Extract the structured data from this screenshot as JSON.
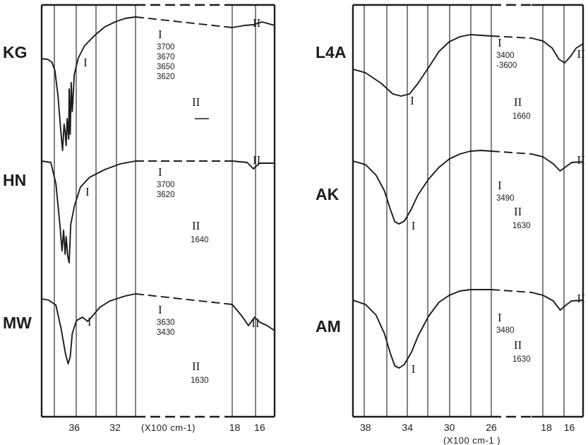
{
  "chart_data": [
    {
      "type": "line",
      "panel": "left",
      "xlabel": "(X100 cm-1)",
      "x_ticks": [
        36,
        32,
        18,
        16
      ],
      "x_range_segments": [
        [
          39.2,
          30
        ],
        [
          18.2,
          14.8
        ]
      ],
      "grid": true,
      "series": [
        {
          "name": "KG",
          "points": [
            [
              39.2,
              83
            ],
            [
              38.6,
              84
            ],
            [
              38.2,
              88
            ],
            [
              37.9,
              100
            ],
            [
              37.6,
              135
            ],
            [
              37.35,
              180
            ],
            [
              37.15,
              213
            ],
            [
              37.0,
              176
            ],
            [
              36.9,
              187
            ],
            [
              36.8,
              206
            ],
            [
              36.7,
              168
            ],
            [
              36.55,
              197
            ],
            [
              36.5,
              126
            ],
            [
              36.4,
              190
            ],
            [
              36.3,
              117
            ],
            [
              36.2,
              158
            ],
            [
              36.0,
              105
            ],
            [
              35.6,
              82
            ],
            [
              35.0,
              65
            ],
            [
              34.0,
              50
            ],
            [
              33.0,
              38
            ],
            [
              32.0,
              31
            ],
            [
              31.0,
              26
            ],
            [
              30.0,
              24
            ],
            [
              18.2,
              39
            ],
            [
              17.2,
              36
            ],
            [
              16.5,
              35
            ],
            [
              15.8,
              31
            ],
            [
              14.8,
              36
            ]
          ],
          "annotations": [
            {
              "roman": "I",
              "values": [
                "3700",
                "3670",
                "3650",
                "3620"
              ]
            },
            {
              "roman": "II",
              "values": [
                "—"
              ]
            }
          ],
          "band_marks": [
            {
              "roman": "I",
              "x": 35.8
            },
            {
              "roman": "II",
              "x": 16.9
            }
          ]
        },
        {
          "name": "HN",
          "points": [
            [
              39.2,
              228
            ],
            [
              38.3,
              230
            ],
            [
              37.8,
              260
            ],
            [
              37.4,
              320
            ],
            [
              37.2,
              355
            ],
            [
              37.05,
              326
            ],
            [
              36.9,
              360
            ],
            [
              36.8,
              335
            ],
            [
              36.65,
              362
            ],
            [
              36.5,
              372
            ],
            [
              36.35,
              318
            ],
            [
              36.0,
              292
            ],
            [
              35.4,
              265
            ],
            [
              34.5,
              251
            ],
            [
              33.0,
              240
            ],
            [
              31.5,
              232
            ],
            [
              30.0,
              228
            ],
            [
              18.2,
              228
            ],
            [
              17.0,
              230
            ],
            [
              16.5,
              239
            ],
            [
              16.0,
              231
            ],
            [
              14.8,
              231
            ]
          ],
          "annotations": [
            {
              "roman": "I",
              "values": [
                "3700",
                "3620"
              ]
            },
            {
              "roman": "II",
              "values": [
                "1640"
              ]
            }
          ],
          "band_marks": [
            {
              "roman": "I",
              "x": 35.6
            },
            {
              "roman": "II",
              "x": 16.9
            }
          ]
        },
        {
          "name": "MW",
          "points": [
            [
              39.2,
              423
            ],
            [
              38.5,
              425
            ],
            [
              37.8,
              432
            ],
            [
              37.3,
              465
            ],
            [
              36.85,
              502
            ],
            [
              36.6,
              515
            ],
            [
              36.4,
              505
            ],
            [
              36.2,
              472
            ],
            [
              35.8,
              454
            ],
            [
              35.2,
              449
            ],
            [
              34.7,
              455
            ],
            [
              34.2,
              447
            ],
            [
              33.5,
              435
            ],
            [
              32.5,
              426
            ],
            [
              31.0,
              419
            ],
            [
              30.0,
              416
            ],
            [
              18.2,
              431
            ],
            [
              17.4,
              448
            ],
            [
              16.9,
              461
            ],
            [
              16.4,
              449
            ],
            [
              16.0,
              456
            ],
            [
              15.4,
              461
            ],
            [
              14.8,
              468
            ]
          ],
          "annotations": [
            {
              "roman": "I",
              "values": [
                "3630",
                "3430"
              ]
            },
            {
              "roman": "II",
              "values": [
                "1630"
              ]
            }
          ],
          "band_marks": [
            {
              "roman": "I",
              "x": 35.4
            },
            {
              "roman": "II",
              "x": 17.0
            }
          ]
        }
      ]
    },
    {
      "type": "line",
      "panel": "right",
      "xlabel": "(X100 cm-1 )",
      "x_ticks": [
        38,
        34,
        30,
        26,
        18,
        16
      ],
      "x_range_segments": [
        [
          39.2,
          26
        ],
        [
          19.3,
          14.8
        ]
      ],
      "grid": true,
      "series": [
        {
          "name": "L4A",
          "points": [
            [
              39.2,
              98
            ],
            [
              38.0,
              103
            ],
            [
              36.5,
              118
            ],
            [
              35.4,
              133
            ],
            [
              34.6,
              136
            ],
            [
              33.8,
              133
            ],
            [
              33.0,
              118
            ],
            [
              32.0,
              96
            ],
            [
              31.0,
              73
            ],
            [
              30.0,
              59
            ],
            [
              29.0,
              52
            ],
            [
              28.0,
              49
            ],
            [
              27.0,
              50
            ],
            [
              26.0,
              51
            ],
            [
              19.3,
              54
            ],
            [
              18.3,
              58
            ],
            [
              17.5,
              68
            ],
            [
              16.9,
              84
            ],
            [
              16.4,
              89
            ],
            [
              15.9,
              80
            ],
            [
              15.4,
              68
            ],
            [
              14.8,
              62
            ]
          ],
          "annotations": [
            {
              "roman": "I",
              "values": [
                "3400",
                "-3600"
              ]
            },
            {
              "roman": "II",
              "values": [
                "1660"
              ]
            }
          ],
          "band_marks": [
            {
              "roman": "I",
              "x": 34.4
            },
            {
              "roman": "II",
              "x": 15.7
            }
          ]
        },
        {
          "name": "AK",
          "points": [
            [
              39.2,
              228
            ],
            [
              38.0,
              233
            ],
            [
              37.0,
              248
            ],
            [
              36.2,
              270
            ],
            [
              35.6,
              298
            ],
            [
              35.2,
              314
            ],
            [
              34.8,
              317
            ],
            [
              34.3,
              313
            ],
            [
              33.7,
              298
            ],
            [
              33.0,
              276
            ],
            [
              32.0,
              254
            ],
            [
              31.0,
              237
            ],
            [
              30.0,
              225
            ],
            [
              29.0,
              218
            ],
            [
              28.0,
              214
            ],
            [
              27.0,
              213
            ],
            [
              26.0,
              214
            ],
            [
              19.3,
              218
            ],
            [
              18.3,
              222
            ],
            [
              17.4,
              232
            ],
            [
              16.8,
              242
            ],
            [
              16.3,
              236
            ],
            [
              15.8,
              230
            ],
            [
              14.8,
              229
            ]
          ],
          "annotations": [
            {
              "roman": "I",
              "values": [
                "3490"
              ]
            },
            {
              "roman": "II",
              "values": [
                "1630"
              ]
            }
          ],
          "band_marks": [
            {
              "roman": "I",
              "x": 34.3
            },
            {
              "roman": "II",
              "x": 15.7
            }
          ]
        },
        {
          "name": "AM",
          "points": [
            [
              39.2,
              425
            ],
            [
              38.0,
              431
            ],
            [
              37.0,
              446
            ],
            [
              36.2,
              472
            ],
            [
              35.6,
              502
            ],
            [
              35.2,
              518
            ],
            [
              34.8,
              521
            ],
            [
              34.3,
              516
            ],
            [
              33.6,
              498
            ],
            [
              33.0,
              476
            ],
            [
              32.0,
              448
            ],
            [
              31.0,
              428
            ],
            [
              30.0,
              418
            ],
            [
              29.0,
              412
            ],
            [
              28.0,
              410
            ],
            [
              26.0,
              410
            ],
            [
              19.3,
              414
            ],
            [
              18.3,
              418
            ],
            [
              17.4,
              426
            ],
            [
              16.8,
              439
            ],
            [
              16.3,
              432
            ],
            [
              15.8,
              426
            ],
            [
              14.8,
              425
            ]
          ],
          "annotations": [
            {
              "roman": "I",
              "values": [
                "3480"
              ]
            },
            {
              "roman": "II",
              "values": [
                "1630"
              ]
            }
          ],
          "band_marks": [
            {
              "roman": "I",
              "x": 34.3
            },
            {
              "roman": "II",
              "x": 15.7
            }
          ]
        }
      ]
    }
  ]
}
